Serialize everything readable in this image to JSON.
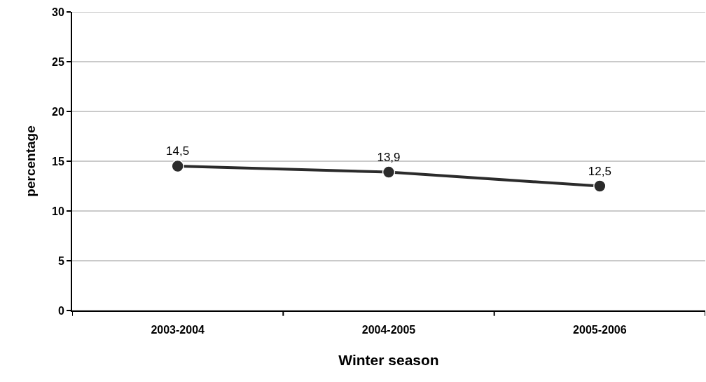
{
  "chart_data": {
    "type": "line",
    "xlabel": "Winter season",
    "ylabel": "percentage",
    "categories": [
      "2003-2004",
      "2004-2005",
      "2005-2006"
    ],
    "series": [
      {
        "color": "#2b2b2b",
        "values": [
          14.5,
          13.9,
          12.5
        ],
        "value_labels": [
          "14,5",
          "13,9",
          "12,5"
        ]
      }
    ],
    "ylim": [
      0,
      30
    ],
    "yticks": [
      0,
      5,
      10,
      15,
      20,
      25,
      30
    ],
    "grid": "y",
    "marker": "circle",
    "line_style": "solid"
  }
}
